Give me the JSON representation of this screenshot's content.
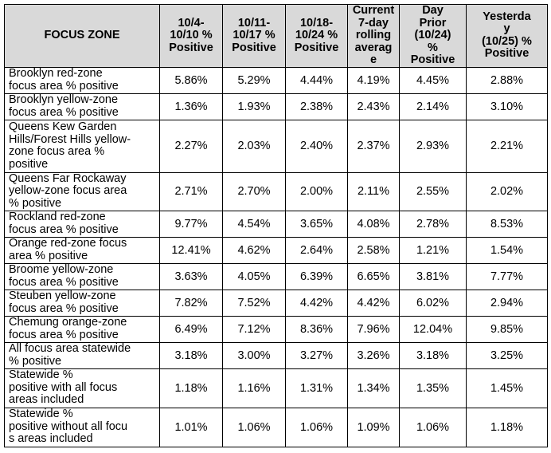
{
  "table": {
    "headers": [
      "FOCUS ZONE",
      "10/4-\n10/10 %\nPositive",
      "10/11-\n10/17 %\nPositive",
      "10/18-\n10/24 %\nPositive",
      "Current\n7-day\nrolling\naverag\ne",
      "Day\nPrior\n(10/24)\n%\nPositive",
      "Yesterda\ny\n(10/25) %\nPositive"
    ],
    "rows": [
      {
        "label": "Brooklyn red-zone\nfocus area % positive",
        "values": [
          "5.86%",
          "5.29%",
          "4.44%",
          "4.19%",
          "4.45%",
          "2.88%"
        ]
      },
      {
        "label": "Brooklyn yellow-zone\nfocus area % positive",
        "values": [
          "1.36%",
          "1.93%",
          "2.38%",
          "2.43%",
          "2.14%",
          "3.10%"
        ]
      },
      {
        "label": "Queens Kew Garden\nHills/Forest Hills yellow-\nzone focus area %\npositive",
        "values": [
          "2.27%",
          "2.03%",
          "2.40%",
          "2.37%",
          "2.93%",
          "2.21%"
        ]
      },
      {
        "label": "Queens Far Rockaway\n yellow-zone focus area\n% positive",
        "values": [
          "2.71%",
          "2.70%",
          "2.00%",
          "2.11%",
          "2.55%",
          "2.02%"
        ]
      },
      {
        "label": "Rockland red-zone\nfocus area % positive",
        "values": [
          "9.77%",
          "4.54%",
          "3.65%",
          "4.08%",
          "2.78%",
          "8.53%"
        ]
      },
      {
        "label": "Orange red-zone focus\narea % positive",
        "values": [
          "12.41%",
          "4.62%",
          "2.64%",
          "2.58%",
          "1.21%",
          "1.54%"
        ]
      },
      {
        "label": "Broome yellow-zone\nfocus area % positive",
        "values": [
          "3.63%",
          "4.05%",
          "6.39%",
          "6.65%",
          "3.81%",
          "7.77%"
        ]
      },
      {
        "label": "Steuben yellow-zone\nfocus area % positive",
        "values": [
          "7.82%",
          "7.52%",
          "4.42%",
          "4.42%",
          "6.02%",
          "2.94%"
        ]
      },
      {
        "label": "Chemung orange-zone\nfocus area % positive",
        "values": [
          "6.49%",
          "7.12%",
          "8.36%",
          "7.96%",
          "12.04%",
          "9.85%"
        ]
      },
      {
        "label": "All focus area statewide\n% positive",
        "values": [
          "3.18%",
          "3.00%",
          "3.27%",
          "3.26%",
          "3.18%",
          "3.25%"
        ]
      },
      {
        "label": "Statewide %\npositive with all focus\nareas included",
        "values": [
          "1.18%",
          "1.16%",
          "1.31%",
          "1.34%",
          "1.35%",
          "1.45%"
        ]
      },
      {
        "label": "Statewide %\npositive without all focu\ns areas included",
        "values": [
          "1.01%",
          "1.06%",
          "1.06%",
          "1.09%",
          "1.06%",
          "1.18%"
        ]
      }
    ]
  }
}
